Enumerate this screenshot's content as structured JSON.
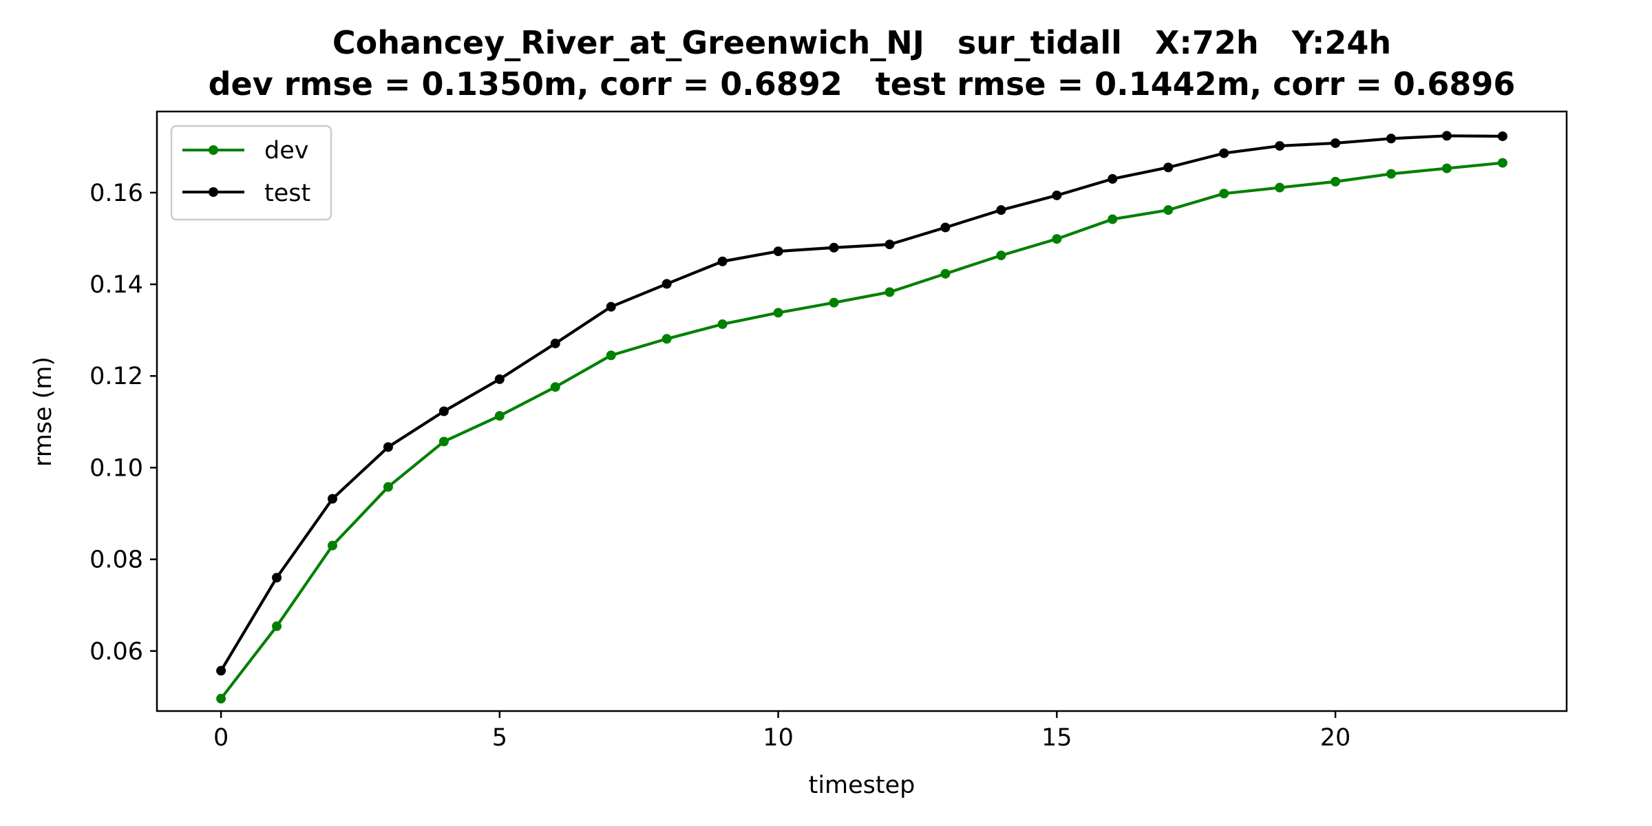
{
  "chart_data": {
    "type": "line",
    "title_line1": "Cohancey_River_at_Greenwich_NJ   sur_tidall   X:72h   Y:24h",
    "title_line2": "dev rmse = 0.1350m, corr = 0.6892   test rmse = 0.1442m, corr = 0.6896",
    "xlabel": "timestep",
    "ylabel": "rmse (m)",
    "xlim": [
      -1.15,
      24.15
    ],
    "ylim": [
      0.0469,
      0.1777
    ],
    "xticks": [
      0,
      5,
      10,
      15,
      20
    ],
    "yticks": [
      0.06,
      0.08,
      0.1,
      0.12,
      0.14,
      0.16
    ],
    "ytick_labels": [
      "0.06",
      "0.08",
      "0.10",
      "0.12",
      "0.14",
      "0.16"
    ],
    "grid": false,
    "legend_position": "top-left",
    "x": [
      0,
      1,
      2,
      3,
      4,
      5,
      6,
      7,
      8,
      9,
      10,
      11,
      12,
      13,
      14,
      15,
      16,
      17,
      18,
      19,
      20,
      21,
      22,
      23
    ],
    "series": [
      {
        "name": "dev",
        "color": "#008000",
        "values": [
          0.0496,
          0.0654,
          0.083,
          0.0958,
          0.1057,
          0.1113,
          0.1176,
          0.1245,
          0.1281,
          0.1313,
          0.1338,
          0.136,
          0.1383,
          0.1423,
          0.1463,
          0.1499,
          0.1542,
          0.1562,
          0.1598,
          0.1611,
          0.1624,
          0.1641,
          0.1653,
          0.1665
        ]
      },
      {
        "name": "test",
        "color": "#000000",
        "values": [
          0.0557,
          0.076,
          0.0932,
          0.1045,
          0.1123,
          0.1193,
          0.1271,
          0.1351,
          0.1401,
          0.145,
          0.1472,
          0.148,
          0.1487,
          0.1524,
          0.1562,
          0.1594,
          0.163,
          0.1655,
          0.1686,
          0.1702,
          0.1708,
          0.1718,
          0.1724,
          0.1723
        ]
      }
    ]
  }
}
